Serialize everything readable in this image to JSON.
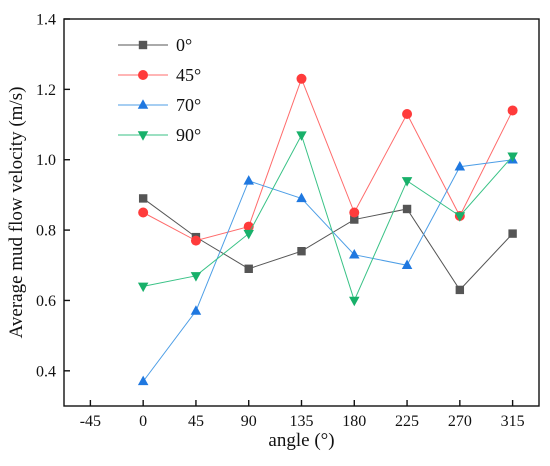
{
  "chart_data": {
    "type": "line",
    "title": "",
    "xlabel": "angle (°)",
    "ylabel": "Average mud flow velocity (m/s)",
    "x": [
      0,
      45,
      90,
      135,
      180,
      225,
      270,
      315
    ],
    "xlim": [
      -67.5,
      337.5
    ],
    "ylim": [
      0.3,
      1.4
    ],
    "xticks": [
      -45,
      0,
      45,
      90,
      135,
      180,
      225,
      270,
      315
    ],
    "yticks": [
      0.4,
      0.6,
      0.8,
      1.0,
      1.2,
      1.4
    ],
    "xtick_labels": [
      "-45",
      "0",
      "45",
      "90",
      "135",
      "180",
      "225",
      "270",
      "315"
    ],
    "ytick_labels": [
      "0.4",
      "0.6",
      "0.8",
      "1.0",
      "1.2",
      "1.4"
    ],
    "grid": false,
    "legend_position": "top-left",
    "series": [
      {
        "name": "0°",
        "marker": "square",
        "line_color": "#555555",
        "marker_color": "#555555",
        "values": [
          0.89,
          0.78,
          0.69,
          0.74,
          0.83,
          0.86,
          0.63,
          0.79
        ]
      },
      {
        "name": "45°",
        "marker": "circle",
        "line_color": "#ff6b6b",
        "marker_color": "#ff3b3b",
        "values": [
          0.85,
          0.77,
          0.81,
          1.23,
          0.85,
          1.13,
          0.84,
          1.14
        ]
      },
      {
        "name": "70°",
        "marker": "triangle-up",
        "line_color": "#4d9ee6",
        "marker_color": "#1f78e0",
        "values": [
          0.37,
          0.57,
          0.94,
          0.89,
          0.73,
          0.7,
          0.98,
          1.0
        ]
      },
      {
        "name": "90°",
        "marker": "triangle-down",
        "line_color": "#39c286",
        "marker_color": "#18b06a",
        "values": [
          0.64,
          0.67,
          0.79,
          1.07,
          0.6,
          0.94,
          0.84,
          1.01
        ]
      }
    ]
  }
}
